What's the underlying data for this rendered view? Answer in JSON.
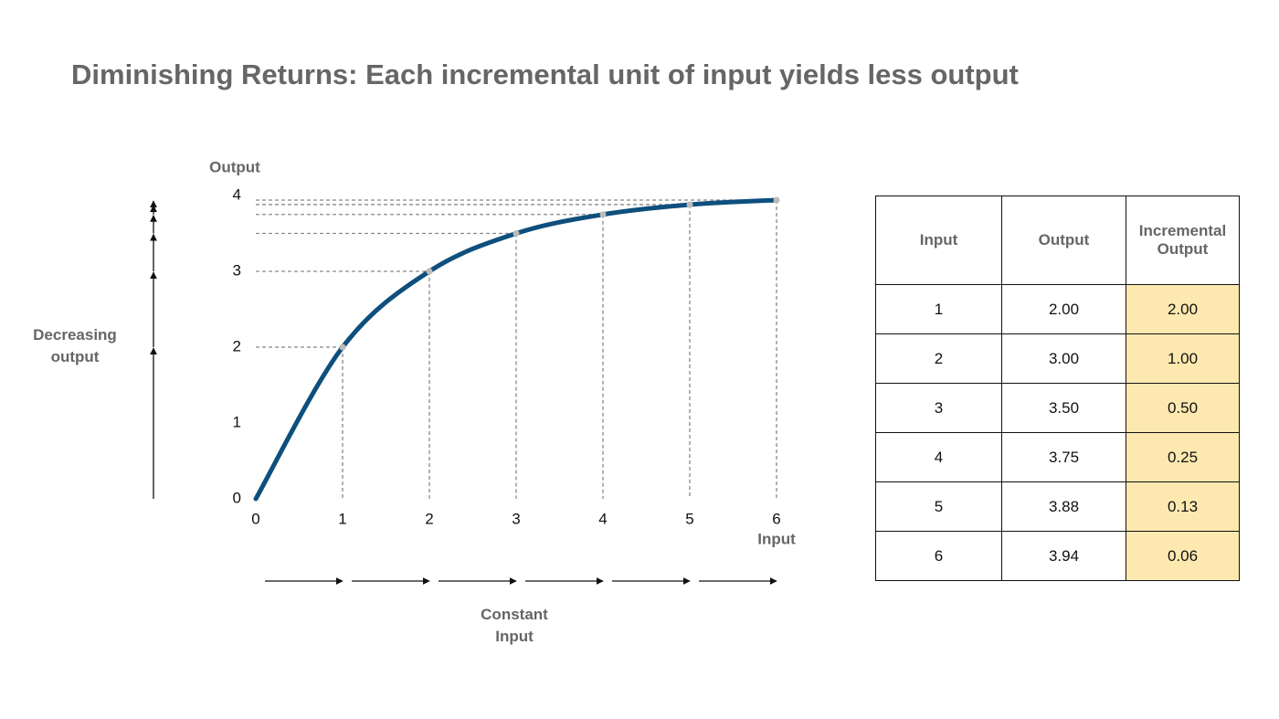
{
  "chart_data": {
    "type": "line",
    "title": "Diminishing Returns: Each incremental unit of input yields less output",
    "x_label": "Input",
    "y_label": "Output",
    "x": [
      0,
      1,
      2,
      3,
      4,
      5,
      6
    ],
    "values": [
      0,
      2,
      3,
      3.5,
      3.75,
      3.88,
      3.94
    ],
    "color": "#0e4f7d",
    "xlim": [
      0,
      6
    ],
    "ylim": [
      0,
      4
    ],
    "xticks": [
      0,
      1,
      2,
      3,
      4,
      5,
      6
    ],
    "yticks": [
      0,
      1,
      2,
      3,
      4
    ],
    "annotations": [
      "Decreasing output",
      "Constant Input"
    ]
  },
  "table": {
    "header": [
      "Input",
      "Output",
      "Incremental Output"
    ],
    "rows": [
      [
        "1",
        "2.00",
        "2.00"
      ],
      [
        "2",
        "3.00",
        "1.00"
      ],
      [
        "3",
        "3.50",
        "0.50"
      ],
      [
        "4",
        "3.75",
        "0.25"
      ],
      [
        "5",
        "3.88",
        "0.13"
      ],
      [
        "6",
        "3.94",
        "0.06"
      ]
    ],
    "highlight_color": "#fde9b0"
  }
}
